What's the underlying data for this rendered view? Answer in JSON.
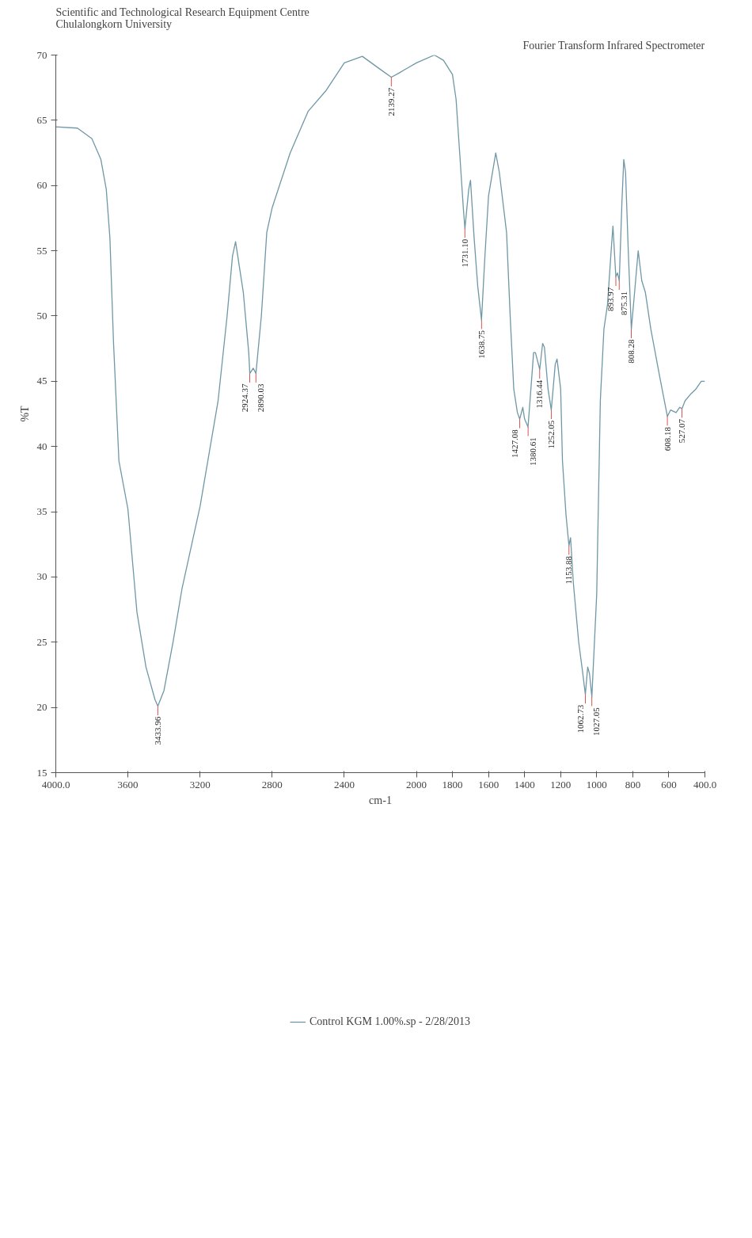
{
  "chart_data": {
    "type": "line",
    "title": "Fourier Transform Infrared Spectrometer",
    "subtitle": "Scientific and Technological Research Equipment Centre\nChulalongkorn University",
    "xlabel": "cm-1",
    "ylabel": "%T",
    "xlim": [
      4000,
      400
    ],
    "xticks": [
      {
        "value": 4000,
        "label": "4000.0"
      },
      3600,
      3200,
      2800,
      2400,
      2000,
      1800,
      1600,
      1400,
      1200,
      1000,
      800,
      600,
      {
        "value": 400,
        "label": "400.0"
      }
    ],
    "ylim": [
      15,
      70
    ],
    "yticks": [
      15,
      20,
      25,
      30,
      35,
      40,
      45,
      50,
      55,
      60,
      65,
      70
    ],
    "grid": false,
    "legend": "bottom",
    "line_style": "solid",
    "marker": "none",
    "series": [
      {
        "name": "Control KGM 1.00%.sp - 2/28/2013",
        "color": "#6f97a6",
        "x": [
          4000,
          3880,
          3800,
          3750,
          3720,
          3700,
          3680,
          3650,
          3600,
          3550,
          3500,
          3450,
          3434,
          3400,
          3350,
          3300,
          3200,
          3100,
          3050,
          3020,
          3003,
          2960,
          2930,
          2924,
          2905,
          2890,
          2860,
          2830,
          2800,
          2700,
          2600,
          2500,
          2400,
          2300,
          2200,
          2139,
          2100,
          2050,
          2000,
          1900,
          1850,
          1800,
          1780,
          1760,
          1740,
          1731,
          1710,
          1700,
          1680,
          1660,
          1639,
          1620,
          1600,
          1560,
          1540,
          1500,
          1480,
          1460,
          1440,
          1427,
          1410,
          1400,
          1381,
          1370,
          1350,
          1340,
          1316,
          1300,
          1290,
          1270,
          1252,
          1230,
          1220,
          1200,
          1190,
          1170,
          1154,
          1145,
          1130,
          1100,
          1080,
          1063,
          1050,
          1040,
          1027,
          1000,
          980,
          960,
          940,
          920,
          910,
          894,
          885,
          875,
          860,
          850,
          840,
          825,
          808,
          790,
          770,
          750,
          730,
          700,
          650,
          608,
          590,
          560,
          540,
          527,
          510,
          480,
          450,
          420,
          400
        ],
        "values": [
          64.5,
          64.4,
          63.6,
          62,
          59.7,
          56,
          48,
          38.9,
          35.2,
          27.3,
          23.1,
          20.6,
          20.1,
          21.3,
          25,
          29.1,
          35.4,
          43.5,
          50,
          54.6,
          55.7,
          51.8,
          47.2,
          45.6,
          46,
          45.6,
          50,
          56.4,
          58.3,
          62.5,
          65.7,
          67.3,
          69.4,
          69.9,
          68.9,
          68.3,
          68.6,
          69,
          69.4,
          70,
          69.6,
          68.5,
          66.6,
          62.5,
          58.3,
          56.7,
          59.7,
          60.4,
          56,
          52.3,
          49.7,
          54.6,
          59.2,
          62.5,
          61,
          56.4,
          50,
          44.4,
          42.6,
          42.1,
          43,
          42.1,
          41.5,
          43.5,
          47.2,
          47.2,
          45.9,
          47.9,
          47.6,
          44.4,
          42.8,
          46.3,
          46.7,
          44.4,
          38.9,
          34.7,
          32.4,
          33,
          29.6,
          25,
          22.9,
          21,
          23.1,
          22.6,
          20.8,
          28.7,
          43.5,
          49,
          50.9,
          55,
          56.9,
          53,
          53.3,
          52.7,
          58.8,
          62,
          61,
          55,
          49,
          51.8,
          55,
          52.7,
          51.8,
          49,
          45.3,
          42.3,
          42.8,
          42.6,
          43,
          42.9,
          43.5,
          44,
          44.4,
          45,
          45
        ]
      }
    ],
    "annotations": [
      {
        "text": "3433.96",
        "x": 3433.96,
        "y": 20.1
      },
      {
        "text": "2924.37",
        "x": 2924.37,
        "y": 45.6
      },
      {
        "text": "2890.03",
        "x": 2890.03,
        "y": 45.6
      },
      {
        "text": "2139.27",
        "x": 2139.27,
        "y": 68.3
      },
      {
        "text": "1731.10",
        "x": 1731.1,
        "y": 56.7
      },
      {
        "text": "1638.75",
        "x": 1638.75,
        "y": 49.7
      },
      {
        "text": "1427.08",
        "x": 1427.08,
        "y": 42.1
      },
      {
        "text": "1380.61",
        "x": 1380.61,
        "y": 41.5
      },
      {
        "text": "1316.44",
        "x": 1316.44,
        "y": 45.9
      },
      {
        "text": "1252.05",
        "x": 1252.05,
        "y": 42.8
      },
      {
        "text": "1153.88",
        "x": 1153.88,
        "y": 32.4
      },
      {
        "text": "1062.73",
        "x": 1062.73,
        "y": 21
      },
      {
        "text": "1027.05",
        "x": 1027.05,
        "y": 20.8
      },
      {
        "text": "893.97",
        "x": 893.97,
        "y": 53
      },
      {
        "text": "875.31",
        "x": 875.31,
        "y": 52.7
      },
      {
        "text": "808.28",
        "x": 808.28,
        "y": 49
      },
      {
        "text": "608.18",
        "x": 608.18,
        "y": 42.3
      },
      {
        "text": "527.07",
        "x": 527.07,
        "y": 42.9
      }
    ]
  }
}
